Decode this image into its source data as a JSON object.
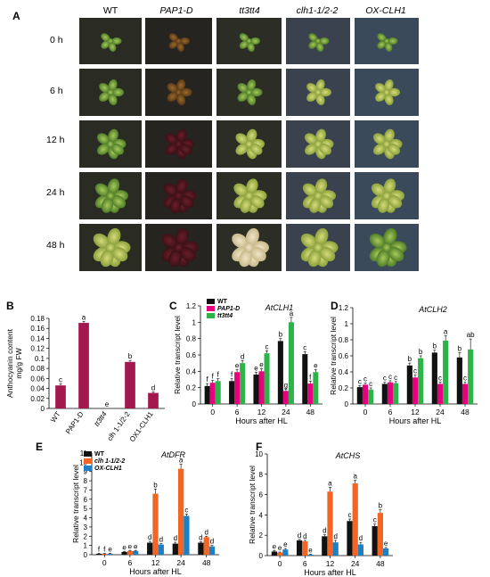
{
  "figure": {
    "panel_a": {
      "letter": "A",
      "columns": [
        "WT",
        "PAP1-D",
        "tt3tt4",
        "clh1-1/2-2",
        "OX-CLH1"
      ],
      "rows": [
        "0 h",
        "6 h",
        "12 h",
        "24 h",
        "48 h"
      ]
    },
    "panel_b": {
      "letter": "B"
    },
    "panel_c": {
      "letter": "C"
    },
    "panel_d": {
      "letter": "D"
    },
    "panel_e": {
      "letter": "E"
    },
    "panel_f": {
      "letter": "F"
    }
  },
  "colors": {
    "black": "#111111",
    "magenta": "#e6007e",
    "green": "#2db34a",
    "orange": "#f26522",
    "blue": "#1f7fc4",
    "crimson": "#a3184f"
  },
  "chart_data": [
    {
      "id": "B",
      "type": "bar",
      "ylabel": "Anthocyanin content mg/g FW",
      "categories": [
        "WT",
        "PAP1-D",
        "tt3tt4",
        "clh 1-1/2-2",
        "OX1-CLH1"
      ],
      "yticks": [
        "0",
        "0.02",
        "0.04",
        "0.06",
        "0.08",
        "0.1",
        "0.12",
        "0.14",
        "0.16",
        "0.18"
      ],
      "ylim": [
        0,
        0.18
      ],
      "series": [
        {
          "values": [
            0.046,
            0.171,
            0.0,
            0.093,
            0.031
          ],
          "errors": [
            0.003,
            0.003,
            0,
            0.003,
            0.002
          ],
          "letters": [
            "c",
            "a",
            "e",
            "b",
            "d"
          ]
        }
      ]
    },
    {
      "id": "C",
      "type": "bar",
      "title": "AtCLH1",
      "ylabel": "Relative transcript level",
      "xlabel": "Hours after HL",
      "categories": [
        "0",
        "6",
        "12",
        "24",
        "48"
      ],
      "yticks": [
        "0",
        "0.2",
        "0.4",
        "0.6",
        "0.8",
        "1",
        "1.2"
      ],
      "ylim": [
        0,
        1.2
      ],
      "series": [
        {
          "name": "WT",
          "values": [
            0.22,
            0.28,
            0.36,
            0.77,
            0.61
          ],
          "errors": [
            0.03,
            0.03,
            0.03,
            0.03,
            0.03
          ],
          "letters": [
            "f",
            "f",
            "e",
            "b",
            "c"
          ]
        },
        {
          "name": "PAP1-D",
          "values": [
            0.26,
            0.39,
            0.4,
            0.16,
            0.25
          ],
          "errors": [
            0.03,
            0.03,
            0.03,
            0.02,
            0.03
          ],
          "letters": [
            "f",
            "e",
            "e",
            "g",
            "f"
          ]
        },
        {
          "name": "tt3tt4",
          "values": [
            0.28,
            0.5,
            0.62,
            1.0,
            0.39
          ],
          "errors": [
            0.03,
            0.03,
            0.03,
            0.06,
            0.03
          ],
          "letters": [
            "f",
            "d",
            "c",
            "a",
            "e"
          ]
        }
      ]
    },
    {
      "id": "D",
      "type": "bar",
      "title": "AtCLH2",
      "ylabel": "Relative transcript level",
      "xlabel": "Hours after HL",
      "categories": [
        "0",
        "6",
        "12",
        "24",
        "48"
      ],
      "yticks": [
        "0",
        "0.2",
        "0.4",
        "0.6",
        "0.8",
        "1",
        "1.2"
      ],
      "ylim": [
        0,
        1.2
      ],
      "series": [
        {
          "name": "WT",
          "values": [
            0.21,
            0.25,
            0.48,
            0.64,
            0.58
          ],
          "errors": [
            0.02,
            0.02,
            0.03,
            0.03,
            0.06
          ],
          "letters": [
            "c",
            "c",
            "b",
            "b",
            "b"
          ]
        },
        {
          "name": "PAP1-D",
          "values": [
            0.24,
            0.27,
            0.33,
            0.25,
            0.25
          ],
          "errors": [
            0.02,
            0.02,
            0.03,
            0.02,
            0.02
          ],
          "letters": [
            "c",
            "c",
            "c",
            "c",
            "c"
          ]
        },
        {
          "name": "tt3tt4",
          "values": [
            0.18,
            0.26,
            0.57,
            0.79,
            0.68
          ],
          "errors": [
            0.02,
            0.02,
            0.03,
            0.06,
            0.13
          ],
          "letters": [
            "c",
            "c",
            "b",
            "a",
            "ab"
          ]
        }
      ]
    },
    {
      "id": "E",
      "type": "bar",
      "title": "AtDFR",
      "ylabel": "Relative transcript level",
      "xlabel": "Hours after HL",
      "categories": [
        "0",
        "6",
        "12",
        "24",
        "48"
      ],
      "yticks": [
        "0",
        "1",
        "2",
        "3",
        "4",
        "5",
        "6",
        "7",
        "8",
        "9",
        "10",
        "11"
      ],
      "ylim": [
        0,
        11
      ],
      "series": [
        {
          "name": "WT",
          "values": [
            0.1,
            0.3,
            1.3,
            1.2,
            1.3
          ],
          "errors": [
            0.05,
            0.05,
            0.15,
            0.15,
            0.1
          ],
          "letters": [
            "f",
            "e",
            "d",
            "d",
            "d"
          ]
        },
        {
          "name": "clh 1-1/2-2",
          "values": [
            0.1,
            0.4,
            6.6,
            9.3,
            1.9
          ],
          "errors": [
            0.05,
            0.05,
            0.5,
            0.5,
            0.1
          ],
          "letters": [
            "f",
            "e",
            "b",
            "a",
            "d"
          ]
        },
        {
          "name": "OX-CLH1",
          "values": [
            0.1,
            0.4,
            1.1,
            4.2,
            0.9
          ],
          "errors": [
            0.05,
            0.05,
            0.1,
            0.2,
            0.1
          ],
          "letters": [
            "e",
            "e",
            "d",
            "c",
            "d"
          ]
        }
      ]
    },
    {
      "id": "F",
      "type": "bar",
      "title": "AtCHS",
      "ylabel": "Relative transcript level",
      "xlabel": "Hours after HL",
      "categories": [
        "0",
        "6",
        "12",
        "24",
        "48"
      ],
      "yticks": [
        "0",
        "2",
        "4",
        "6",
        "8",
        "10"
      ],
      "ylim": [
        0,
        10
      ],
      "series": [
        {
          "name": "WT",
          "values": [
            0.4,
            1.5,
            1.9,
            3.4,
            2.9
          ],
          "errors": [
            0.1,
            0.1,
            0.15,
            0.2,
            0.2
          ],
          "letters": [
            "e",
            "d",
            "d",
            "c",
            "c"
          ]
        },
        {
          "name": "clh 1-1/2-2",
          "values": [
            0.3,
            1.4,
            6.3,
            7.1,
            4.2
          ],
          "errors": [
            0.05,
            0.1,
            0.4,
            0.3,
            0.3
          ],
          "letters": [
            "e",
            "d",
            "a",
            "a",
            "b"
          ]
        },
        {
          "name": "OX-CLH1",
          "values": [
            0.6,
            0.1,
            1.3,
            1.1,
            0.7
          ],
          "errors": [
            0.1,
            0.03,
            0.2,
            0.2,
            0.1
          ],
          "letters": [
            "e",
            "e",
            "d",
            "d",
            "e"
          ]
        }
      ]
    }
  ]
}
